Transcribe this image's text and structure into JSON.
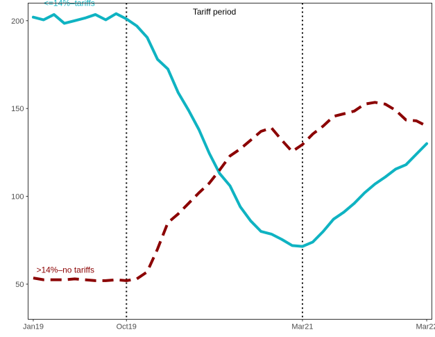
{
  "chart_data": {
    "type": "line",
    "title": "",
    "xlabel": "",
    "ylabel": "",
    "ylim": [
      30,
      210
    ],
    "y_ticks": [
      50,
      100,
      150,
      200
    ],
    "x_range": [
      -0.5,
      38.5
    ],
    "x_ticks": [
      {
        "label": "Jan19",
        "x": 0
      },
      {
        "label": "Oct19",
        "x": 9
      },
      {
        "label": "Mar21",
        "x": 26
      },
      {
        "label": "Mar22",
        "x": 38
      }
    ],
    "vlines": [
      9,
      26
    ],
    "grid": false,
    "series": [
      {
        "name": "<=14%–tariffs",
        "color": "#0fb3c2",
        "style": "solid",
        "x": [
          0,
          1,
          2,
          3,
          4,
          5,
          6,
          7,
          8,
          9,
          10,
          11,
          12,
          13,
          14,
          15,
          16,
          17,
          18,
          19,
          20,
          21,
          22,
          23,
          24,
          25,
          26,
          27,
          28,
          29,
          30,
          31,
          32,
          33,
          34,
          35,
          36,
          37,
          38
        ],
        "y": [
          202,
          200.5,
          203.5,
          198.5,
          200,
          201.5,
          203.5,
          200.5,
          204,
          201,
          197,
          190.5,
          178,
          172.5,
          159,
          149,
          138,
          124.5,
          113,
          106,
          94,
          86,
          80,
          78.5,
          75.5,
          72,
          71.5,
          74,
          80,
          87,
          91,
          96,
          102,
          107,
          111,
          115.5,
          118,
          124,
          130
        ]
      },
      {
        "name": ">14%–no tariffs",
        "color": "#8b0000",
        "style": "dashed",
        "x": [
          0,
          1,
          2,
          3,
          4,
          5,
          6,
          7,
          8,
          9,
          10,
          11,
          12,
          13,
          14,
          15,
          16,
          17,
          18,
          19,
          20,
          21,
          22,
          23,
          24,
          25,
          26,
          27,
          28,
          29,
          30,
          31,
          32,
          33,
          34,
          35,
          36,
          37,
          38
        ],
        "y": [
          53.5,
          52.5,
          52.5,
          52.5,
          53,
          52.5,
          52,
          52,
          52.5,
          52,
          53,
          57,
          70,
          85,
          90,
          96,
          102,
          107.5,
          115,
          123,
          127,
          132,
          137,
          139,
          132,
          125.5,
          129.5,
          135.5,
          140,
          145.5,
          147,
          148.5,
          152.5,
          153.5,
          152.5,
          149,
          143.5,
          143,
          140
        ]
      }
    ],
    "annotations": [
      {
        "text": "Tariff period",
        "x": 17.5,
        "y": 205,
        "color": "#000000"
      },
      {
        "text": "<=14%–tariffs",
        "x": 1.0,
        "y": 210,
        "color": "#0fb3c2"
      },
      {
        "text": ">14%–no tariffs",
        "x": 0.3,
        "y": 58,
        "color": "#8b0000"
      }
    ]
  }
}
